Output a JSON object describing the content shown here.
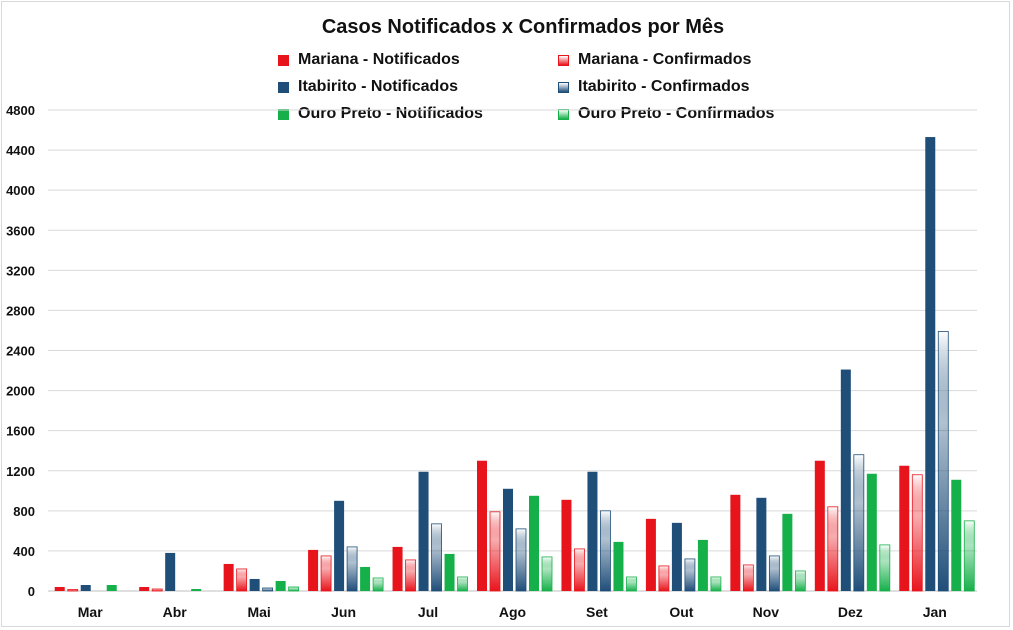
{
  "chart_data": {
    "type": "bar",
    "title": "Casos Notificados x Confirmados por Mês",
    "xlabel": "",
    "ylabel": "",
    "ylim": [
      0,
      4800
    ],
    "yticks": [
      0,
      400,
      800,
      1200,
      1600,
      2000,
      2400,
      2800,
      3200,
      3600,
      4000,
      4400,
      4800
    ],
    "grid": true,
    "legend_position": "top",
    "categories": [
      "Mar",
      "Abr",
      "Mai",
      "Jun",
      "Jul",
      "Ago",
      "Set",
      "Out",
      "Nov",
      "Dez",
      "Jan"
    ],
    "series": [
      {
        "name": "Mariana - Notificados",
        "color": "#e8141c",
        "style": "solid",
        "values": [
          40,
          40,
          270,
          410,
          440,
          1300,
          910,
          720,
          960,
          1300,
          1250
        ]
      },
      {
        "name": "Mariana - Confirmados",
        "color": "#e8141c",
        "style": "gradient",
        "values": [
          15,
          20,
          220,
          350,
          310,
          790,
          420,
          250,
          260,
          840,
          1160
        ]
      },
      {
        "name": "Itabirito - Notificados",
        "color": "#1f4e79",
        "style": "solid",
        "values": [
          60,
          380,
          120,
          900,
          1190,
          1020,
          1190,
          680,
          930,
          2210,
          4530
        ]
      },
      {
        "name": "Itabirito - Confirmados",
        "color": "#1f4e79",
        "style": "gradient",
        "values": [
          0,
          0,
          30,
          440,
          670,
          620,
          800,
          320,
          350,
          1360,
          2590
        ]
      },
      {
        "name": "Ouro Preto - Notificados",
        "color": "#16b04a",
        "style": "solid",
        "values": [
          60,
          20,
          100,
          240,
          370,
          950,
          490,
          510,
          770,
          1170,
          1110
        ]
      },
      {
        "name": "Ouro Preto - Confirmados",
        "color": "#16b04a",
        "style": "gradient",
        "values": [
          0,
          0,
          40,
          130,
          140,
          340,
          140,
          140,
          200,
          460,
          700
        ]
      }
    ]
  }
}
